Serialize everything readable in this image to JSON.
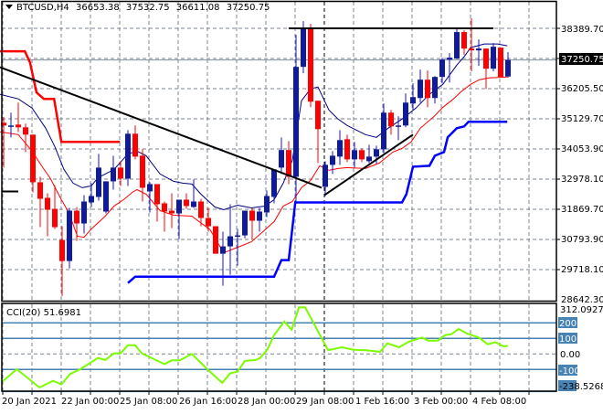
{
  "header": {
    "symbol": "BTCUSD,H4",
    "open": "36653.38",
    "high": "37532.75",
    "low": "36611.08",
    "close": "37250.75"
  },
  "price_axis": {
    "labels": [
      "38389.70",
      "36205.50",
      "35129.70",
      "34053.90",
      "32978.10",
      "31869.70",
      "30793.90",
      "29718.10",
      "28642.30"
    ],
    "current_price_label": "37250.75"
  },
  "cci_panel": {
    "title": "CCI(20)",
    "value": "51.6981",
    "max_label": "312.0927",
    "min_label": "-238.5268",
    "levels": [
      "200",
      "100",
      "0.00",
      "-100"
    ]
  },
  "time_axis": [
    "20 Jan 2021",
    "22 Jan 00:00",
    "25 Jan 08:00",
    "26 Jan 16:00",
    "28 Jan 00:00",
    "29 Jan 08:00",
    "1 Feb 16:00",
    "3 Feb 00:00",
    "4 Feb 08:00"
  ],
  "colors": {
    "bull": "#0f1a9c",
    "bull_wick": "#1010e0",
    "bear": "#ff0000",
    "ma_fast": "#ff0000",
    "ma_slow": "#000080",
    "channel_upper": "#ff0000",
    "channel_lower": "#0000ff",
    "cci": "#7cfc00",
    "level": "#4682b4",
    "trendline": "#000000"
  },
  "chart_data": {
    "type": "candlestick",
    "ylim": [
      28642.3,
      38389.7
    ],
    "candles_ohlc": [
      [
        34988,
        35186,
        33371,
        34889
      ],
      [
        34856,
        35351,
        34460,
        34889
      ],
      [
        34922,
        35714,
        34658,
        34823
      ],
      [
        34823,
        34955,
        33932,
        34559
      ],
      [
        34559,
        34559,
        32480,
        32843
      ],
      [
        32843,
        33041,
        31226,
        32249
      ],
      [
        32282,
        32447,
        30896,
        31853
      ],
      [
        31886,
        32744,
        31160,
        31226
      ],
      [
        30764,
        31259,
        28751,
        30005
      ],
      [
        30005,
        31919,
        29741,
        31820
      ],
      [
        31820,
        31952,
        30731,
        31358
      ],
      [
        31358,
        32381,
        30995,
        32150
      ],
      [
        32117,
        32810,
        31952,
        32348
      ],
      [
        32315,
        33866,
        32183,
        33371
      ],
      [
        31787,
        32876,
        31721,
        32876
      ],
      [
        32876,
        33800,
        32579,
        33371
      ],
      [
        33371,
        33602,
        32711,
        32975
      ],
      [
        32975,
        34724,
        32711,
        34592
      ],
      [
        34592,
        34889,
        33668,
        33767
      ],
      [
        33800,
        34031,
        32150,
        32645
      ],
      [
        32513,
        32843,
        31754,
        32777
      ],
      [
        32777,
        32777,
        31424,
        32051
      ],
      [
        32084,
        32150,
        31061,
        31787
      ],
      [
        31820,
        32447,
        31193,
        31721
      ],
      [
        31721,
        32216,
        30797,
        32216
      ],
      [
        32216,
        32447,
        31886,
        31985
      ],
      [
        31952,
        32942,
        31919,
        32150
      ],
      [
        32150,
        32249,
        31259,
        31556
      ],
      [
        31556,
        31919,
        31061,
        31259
      ],
      [
        31259,
        31259,
        30269,
        30269
      ],
      [
        30269,
        31061,
        29114,
        30533
      ],
      [
        30533,
        32051,
        29510,
        30896
      ],
      [
        30896,
        31160,
        29840,
        30929
      ],
      [
        30929,
        31820,
        30830,
        31820
      ],
      [
        31820,
        31919,
        30797,
        31457
      ],
      [
        31457,
        31919,
        31061,
        31787
      ],
      [
        31754,
        32546,
        31589,
        32348
      ],
      [
        32315,
        33305,
        32084,
        33305
      ],
      [
        33371,
        34460,
        33140,
        34004
      ],
      [
        34004,
        34328,
        32777,
        33041
      ],
      [
        33041,
        38156,
        32150,
        37001
      ],
      [
        37001,
        38651,
        36770,
        38420
      ],
      [
        38387,
        38552,
        35549,
        35747
      ],
      [
        35780,
        35780,
        33536,
        34757
      ],
      [
        32678,
        33602,
        32348,
        33470
      ],
      [
        33470,
        33965,
        33140,
        33800
      ],
      [
        33767,
        34724,
        33470,
        34361
      ],
      [
        34394,
        34559,
        33569,
        33668
      ],
      [
        33668,
        34295,
        33371,
        34000
      ],
      [
        34000,
        34064,
        33569,
        33668
      ],
      [
        33602,
        34196,
        33536,
        33767
      ],
      [
        33767,
        34163,
        33503,
        34031
      ],
      [
        34031,
        35681,
        33899,
        35351
      ],
      [
        35351,
        35450,
        34559,
        34856
      ],
      [
        34856,
        35219,
        34361,
        34889
      ],
      [
        34889,
        36044,
        34823,
        35714
      ],
      [
        35681,
        36407,
        35450,
        35912
      ],
      [
        35879,
        36902,
        35714,
        36539
      ],
      [
        36539,
        36869,
        35549,
        35879
      ],
      [
        35879,
        36671,
        35681,
        36638
      ],
      [
        36638,
        37331,
        36407,
        37265
      ],
      [
        37265,
        37496,
        36440,
        37331
      ],
      [
        37298,
        38420,
        37298,
        38255
      ],
      [
        38255,
        38321,
        37430,
        37661
      ],
      [
        37661,
        38750,
        36836,
        37595
      ],
      [
        37595,
        37991,
        37034,
        37661
      ],
      [
        37661,
        37661,
        36209,
        36935
      ],
      [
        36935,
        37859,
        36836,
        37727
      ],
      [
        37694,
        37694,
        36638,
        36638
      ],
      [
        36653.38,
        37532.75,
        36611.08,
        37250.75
      ]
    ],
    "ma_slow": [
      [
        0.5,
        36011
      ],
      [
        3,
        35846
      ],
      [
        4.9,
        35516
      ],
      [
        6.75,
        34790
      ],
      [
        8,
        34130
      ],
      [
        9.25,
        33305
      ],
      [
        10.5,
        32810
      ],
      [
        11.75,
        32645
      ],
      [
        13,
        32711
      ],
      [
        13.9,
        33008
      ],
      [
        14.9,
        33140
      ],
      [
        16.1,
        33305
      ],
      [
        18,
        33866
      ],
      [
        19.25,
        33965
      ],
      [
        20.5,
        33800
      ],
      [
        22.4,
        33140
      ],
      [
        24.25,
        32876
      ],
      [
        25.5,
        32810
      ],
      [
        26.75,
        32777
      ],
      [
        28,
        32414
      ],
      [
        29.9,
        31952
      ],
      [
        31.1,
        31853
      ],
      [
        33,
        32018
      ],
      [
        34.9,
        31919
      ],
      [
        36.75,
        31985
      ],
      [
        38,
        32216
      ],
      [
        39.25,
        32810
      ],
      [
        40.5,
        33635
      ],
      [
        41.75,
        35780
      ],
      [
        43,
        36209
      ],
      [
        44,
        36275
      ],
      [
        45.5,
        35450
      ],
      [
        46.75,
        35120
      ],
      [
        48,
        34889
      ],
      [
        49.25,
        34724
      ],
      [
        50.5,
        34559
      ],
      [
        52,
        34460
      ],
      [
        53.6,
        34790
      ],
      [
        55.5,
        35120
      ],
      [
        57.4,
        35516
      ],
      [
        59.25,
        36011
      ],
      [
        61.1,
        36374
      ],
      [
        63,
        37067
      ],
      [
        64,
        37364
      ],
      [
        64.9,
        37694
      ],
      [
        66.75,
        37826
      ],
      [
        68.6,
        37826
      ],
      [
        69.9,
        37760
      ]
    ],
    "ma_fast": [
      [
        0.5,
        34658
      ],
      [
        3,
        34559
      ],
      [
        4.9,
        33965
      ],
      [
        6.1,
        33470
      ],
      [
        7.4,
        32975
      ],
      [
        8.9,
        32216
      ],
      [
        9.9,
        31754
      ],
      [
        11.1,
        30896
      ],
      [
        12,
        30863
      ],
      [
        13,
        31160
      ],
      [
        14.9,
        31622
      ],
      [
        16.1,
        31985
      ],
      [
        17.4,
        32216
      ],
      [
        18.6,
        32480
      ],
      [
        19.25,
        32579
      ],
      [
        20.5,
        32414
      ],
      [
        22.4,
        31820
      ],
      [
        24.25,
        31655
      ],
      [
        26.75,
        31622
      ],
      [
        29.25,
        31127
      ],
      [
        31.1,
        30302
      ],
      [
        33,
        30500
      ],
      [
        34.9,
        30698
      ],
      [
        36.75,
        31127
      ],
      [
        38,
        31424
      ],
      [
        39.25,
        31985
      ],
      [
        40.5,
        32150
      ],
      [
        41.75,
        32645
      ],
      [
        43,
        32909
      ],
      [
        44.25,
        33437
      ],
      [
        45.5,
        33272
      ],
      [
        46.75,
        33338
      ],
      [
        48,
        33371
      ],
      [
        50.5,
        33338
      ],
      [
        52.4,
        33536
      ],
      [
        54.25,
        33932
      ],
      [
        55.5,
        34064
      ],
      [
        56.75,
        34295
      ],
      [
        58,
        34790
      ],
      [
        59.9,
        35219
      ],
      [
        61.1,
        35549
      ],
      [
        62.4,
        35813
      ],
      [
        63.6,
        36110
      ],
      [
        64.9,
        36374
      ],
      [
        66.1,
        36539
      ],
      [
        67.4,
        36605
      ],
      [
        69.9,
        36638
      ]
    ],
    "channel_upper": [
      [
        0.5,
        37562
      ],
      [
        3.9,
        37562
      ],
      [
        4.6,
        37166
      ],
      [
        5.5,
        36077
      ],
      [
        6.5,
        35846
      ],
      [
        7.9,
        35846
      ],
      [
        8.9,
        34295
      ],
      [
        16.9,
        34295
      ]
    ],
    "channel_lower": [
      [
        18,
        29213
      ],
      [
        19,
        29444
      ],
      [
        38,
        29444
      ],
      [
        39,
        30038
      ],
      [
        40,
        30038
      ],
      [
        40.9,
        32117
      ],
      [
        55.5,
        32117
      ],
      [
        56.1,
        32414
      ],
      [
        57,
        33404
      ],
      [
        59.25,
        33437
      ],
      [
        60,
        33800
      ],
      [
        61.25,
        33932
      ],
      [
        61.75,
        34460
      ],
      [
        63,
        34790
      ],
      [
        64,
        34856
      ],
      [
        64.6,
        35021
      ],
      [
        69.9,
        35021
      ]
    ],
    "trendlines": [
      [
        [
          0.5,
          36990
        ],
        [
          44.5,
          32645
        ]
      ],
      [
        [
          44.9,
          32381
        ],
        [
          57,
          34559
        ]
      ],
      [
        [
          40,
          38389.7
        ],
        [
          68,
          38389.7
        ]
      ],
      [
        [
          0.75,
          32513
        ],
        [
          3,
          32513
        ]
      ]
    ],
    "cci": [
      [
        0.84,
        -177
      ],
      [
        2.8,
        -98
      ],
      [
        5.9,
        -216
      ],
      [
        7.75,
        -173
      ],
      [
        8.9,
        -196
      ],
      [
        10.1,
        -129
      ],
      [
        11.5,
        -98
      ],
      [
        13.9,
        -26
      ],
      [
        14.9,
        -39
      ],
      [
        16.1,
        4
      ],
      [
        17,
        4
      ],
      [
        18,
        56
      ],
      [
        19,
        56
      ],
      [
        19.9,
        4
      ],
      [
        23,
        -65
      ],
      [
        24,
        -41
      ],
      [
        25.1,
        -41
      ],
      [
        26.75,
        0
      ],
      [
        29,
        -104
      ],
      [
        30.9,
        -186
      ],
      [
        32,
        -124
      ],
      [
        33,
        -114
      ],
      [
        34,
        -45
      ],
      [
        35.5,
        -39
      ],
      [
        36.1,
        -26
      ],
      [
        37.1,
        30
      ],
      [
        38,
        121
      ],
      [
        39.4,
        209
      ],
      [
        40.4,
        156
      ],
      [
        41.4,
        300
      ],
      [
        42.25,
        300
      ],
      [
        45.4,
        24
      ],
      [
        47.25,
        43
      ],
      [
        48.9,
        27
      ],
      [
        50.6,
        24
      ],
      [
        52.5,
        14
      ],
      [
        53.5,
        68
      ],
      [
        55.1,
        43
      ],
      [
        56.4,
        78
      ],
      [
        58.25,
        106
      ],
      [
        59.1,
        86
      ],
      [
        60.4,
        86
      ],
      [
        61.4,
        121
      ],
      [
        62.25,
        127
      ],
      [
        63.25,
        161
      ],
      [
        64.4,
        131
      ],
      [
        66,
        106
      ],
      [
        67.25,
        62
      ],
      [
        68.25,
        76
      ],
      [
        69.4,
        49
      ],
      [
        70,
        51.7
      ]
    ],
    "cci_ylim": [
      -238.5268,
      312.0927
    ],
    "cci_levels": [
      200,
      100,
      0,
      -100
    ]
  }
}
